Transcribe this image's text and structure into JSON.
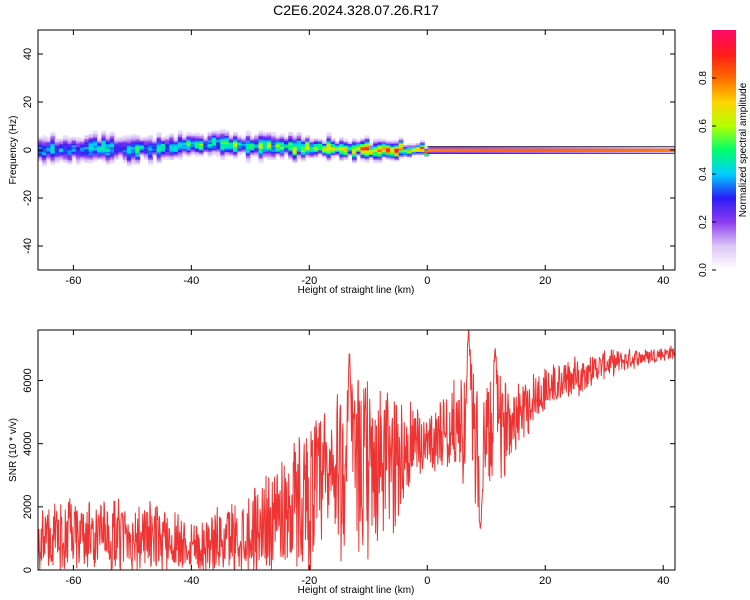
{
  "title": "C2E6.2024.328.07.26.R17",
  "chart_data": [
    {
      "type": "heatmap",
      "xlabel": "Height of straight line (km)",
      "ylabel": "Frequency (Hz)",
      "xlim": [
        -66,
        42
      ],
      "ylim": [
        -50,
        50
      ],
      "xticks": [
        -60,
        -40,
        -20,
        0,
        20,
        40
      ],
      "yticks": [
        -40,
        -20,
        0,
        20,
        40
      ],
      "colorbar": {
        "label": "Normalized spectral amplitude",
        "range": [
          0,
          1
        ],
        "ticks": [
          "0.0",
          "0.2",
          "0.4",
          "0.6",
          "0.8"
        ],
        "ticks_values": [
          0,
          0.2,
          0.4,
          0.6,
          0.8
        ],
        "colors": [
          "#ffffff",
          "#dcc6f7",
          "#8c3cf0",
          "#2a1cf5",
          "#00cfff",
          "#00ff6c",
          "#b4ff00",
          "#ffd400",
          "#ff6a00",
          "#ff1a1a",
          "#ff0a6c"
        ]
      },
      "ridge": [
        {
          "x": -66,
          "f": 0.0
        },
        {
          "x": -60,
          "f": 0.3
        },
        {
          "x": -55,
          "f": 0.8
        },
        {
          "x": -50,
          "f": 0.2
        },
        {
          "x": -45,
          "f": 1.2
        },
        {
          "x": -40,
          "f": 2.0
        },
        {
          "x": -35,
          "f": 2.5
        },
        {
          "x": -30,
          "f": 1.8
        },
        {
          "x": -25,
          "f": 1.5
        },
        {
          "x": -20,
          "f": 0.8
        },
        {
          "x": -15,
          "f": 0.4
        },
        {
          "x": -10,
          "f": 0.2
        },
        {
          "x": -5,
          "f": 0.3
        },
        {
          "x": 0,
          "f": 0.0
        },
        {
          "x": 10,
          "f": 0.0
        },
        {
          "x": 20,
          "f": 0.0
        },
        {
          "x": 30,
          "f": 0.0
        },
        {
          "x": 42,
          "f": 0.0
        }
      ],
      "peak_amplitude": [
        {
          "x": -66,
          "a": 0.45
        },
        {
          "x": -50,
          "a": 0.45
        },
        {
          "x": -40,
          "a": 0.5
        },
        {
          "x": -30,
          "a": 0.55
        },
        {
          "x": -20,
          "a": 0.65
        },
        {
          "x": -10,
          "a": 0.75
        },
        {
          "x": 0,
          "a": 0.92
        },
        {
          "x": 10,
          "a": 0.96
        },
        {
          "x": 20,
          "a": 0.98
        },
        {
          "x": 42,
          "a": 1.0
        }
      ],
      "spread_hz": [
        {
          "x": -66,
          "w": 3.5
        },
        {
          "x": -40,
          "w": 3.5
        },
        {
          "x": -20,
          "w": 3.0
        },
        {
          "x": -5,
          "w": 2.5
        },
        {
          "x": 0,
          "w": 1.2
        },
        {
          "x": 42,
          "w": 1.0
        }
      ]
    },
    {
      "type": "line",
      "xlabel": "Height of straight line (km)",
      "ylabel": "SNR (10 * v/v)",
      "xlim": [
        -66,
        42
      ],
      "ylim": [
        0,
        7600
      ],
      "xticks": [
        -60,
        -40,
        -20,
        0,
        20,
        40
      ],
      "yticks": [
        0,
        2000,
        4000,
        6000
      ],
      "color": "#ee3333",
      "envelope": [
        {
          "x": -66,
          "base": 1000,
          "amp": 1300
        },
        {
          "x": -55,
          "base": 1100,
          "amp": 1300
        },
        {
          "x": -45,
          "base": 1000,
          "amp": 1200
        },
        {
          "x": -38,
          "base": 800,
          "amp": 1000
        },
        {
          "x": -30,
          "base": 1200,
          "amp": 1500
        },
        {
          "x": -25,
          "base": 1800,
          "amp": 2200
        },
        {
          "x": -20,
          "base": 2400,
          "amp": 2600
        },
        {
          "x": -15,
          "base": 3000,
          "amp": 3200
        },
        {
          "x": -10,
          "base": 3200,
          "amp": 3300
        },
        {
          "x": -5,
          "base": 3600,
          "amp": 2500
        },
        {
          "x": 0,
          "base": 4100,
          "amp": 1000
        },
        {
          "x": 5,
          "base": 4600,
          "amp": 1600
        },
        {
          "x": 8,
          "base": 4300,
          "amp": 2600
        },
        {
          "x": 10,
          "base": 4000,
          "amp": 2400
        },
        {
          "x": 15,
          "base": 5000,
          "amp": 1300
        },
        {
          "x": 20,
          "base": 5700,
          "amp": 900
        },
        {
          "x": 25,
          "base": 6100,
          "amp": 700
        },
        {
          "x": 30,
          "base": 6500,
          "amp": 500
        },
        {
          "x": 35,
          "base": 6700,
          "amp": 350
        },
        {
          "x": 42,
          "base": 6900,
          "amp": 250
        }
      ],
      "features": [
        {
          "x": 7.0,
          "y": 7600
        },
        {
          "x": 9.0,
          "y": 1300
        },
        {
          "x": 11.5,
          "y": 7000
        },
        {
          "x": -13.2,
          "y": 6900
        }
      ]
    }
  ]
}
